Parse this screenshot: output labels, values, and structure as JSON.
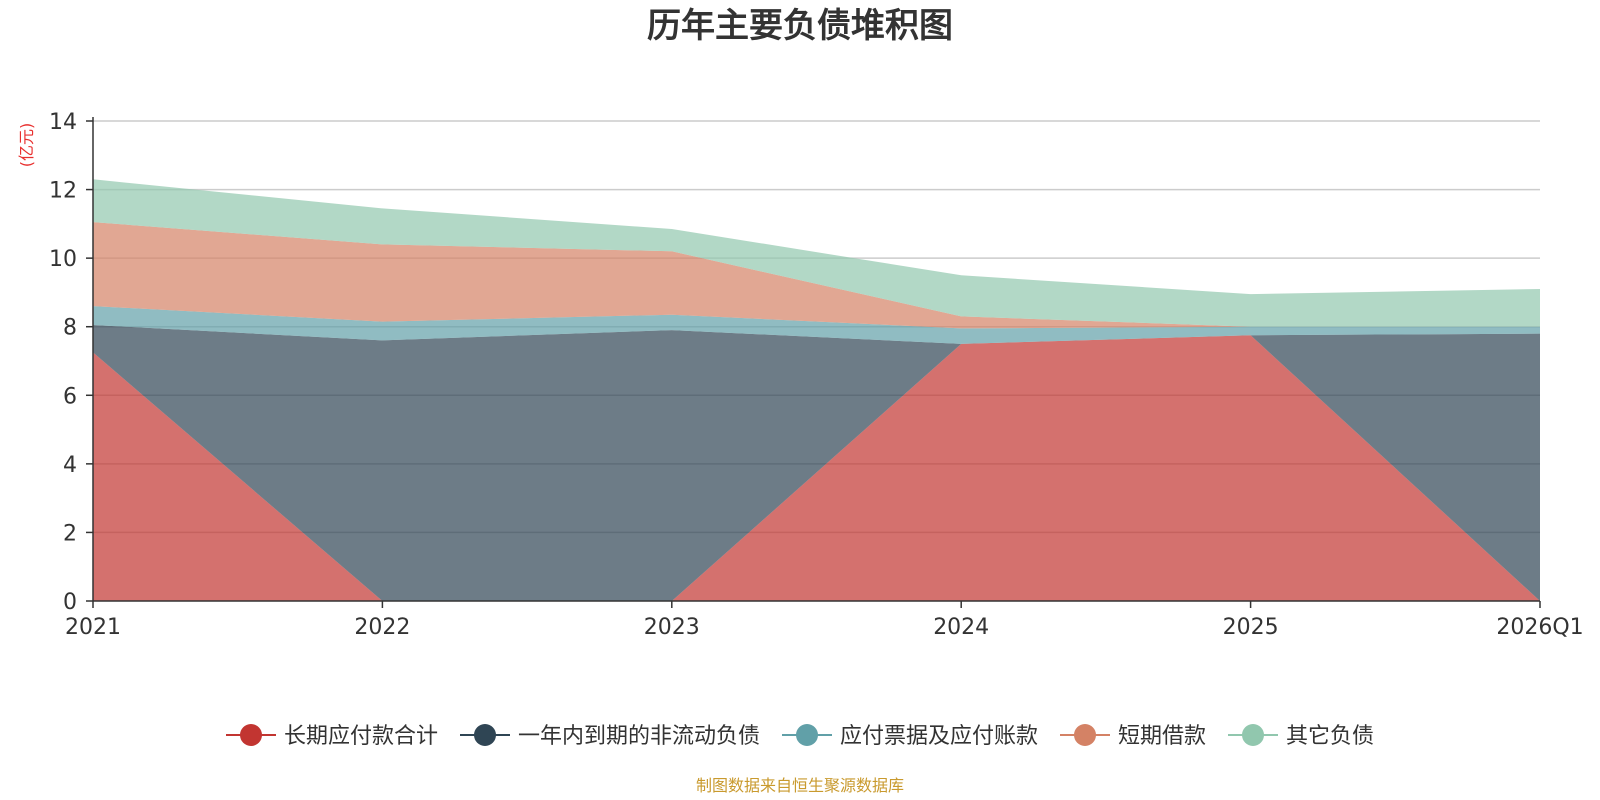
{
  "chart_data": {
    "type": "area",
    "stacked": true,
    "title": "历年主要负债堆积图",
    "unit_label": "(亿元)",
    "categories": [
      "2021",
      "2022",
      "2023",
      "2024",
      "2025",
      "2026Q1"
    ],
    "ylim": [
      0,
      14
    ],
    "yticks": [
      0,
      2,
      4,
      6,
      8,
      10,
      12,
      14
    ],
    "grid": true,
    "legend_position": "bottom",
    "series": [
      {
        "name": "长期应付款合计",
        "color": "#c23531",
        "values": [
          7.25,
          0,
          0,
          7.5,
          7.75,
          0
        ]
      },
      {
        "name": "一年内到期的非流动负债",
        "color": "#2f4554",
        "values": [
          0.8,
          7.6,
          7.9,
          0,
          0,
          7.8
        ]
      },
      {
        "name": "应付票据及应付账款",
        "color": "#61a0a8",
        "values": [
          0.55,
          0.55,
          0.45,
          0.45,
          0.25,
          0.2
        ]
      },
      {
        "name": "短期借款",
        "color": "#d48265",
        "values": [
          2.45,
          2.25,
          1.85,
          0.35,
          0,
          0
        ]
      },
      {
        "name": "其它负债",
        "color": "#91c7ae",
        "values": [
          1.25,
          1.05,
          0.65,
          1.2,
          0.95,
          1.1
        ]
      }
    ]
  },
  "footer": {
    "source": "制图数据来自恒生聚源数据库"
  }
}
